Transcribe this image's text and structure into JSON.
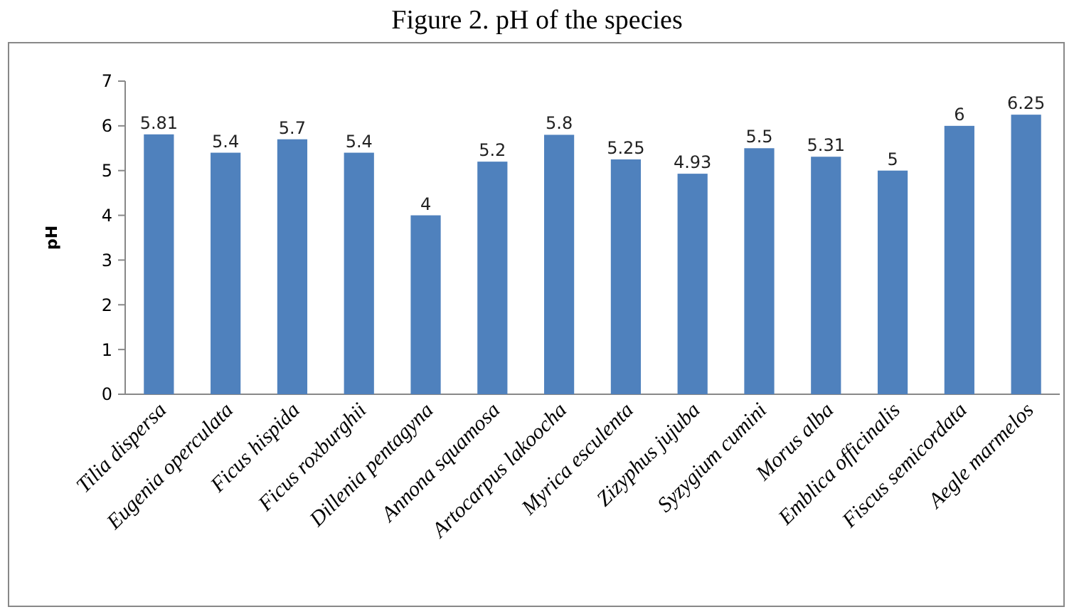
{
  "chart_data": {
    "type": "bar",
    "title": "Figure 2. pH of the species",
    "ylabel": "pH",
    "categories": [
      "Tilia dispersa",
      "Eugenia operculata",
      "Ficus hispida",
      "Ficus roxburghii",
      "Dillenia pentagyna",
      "Annona squamosa",
      "Artocarpus lakoocha",
      "Myrica esculenta",
      "Zizyphus jujuba",
      "Syzygium cumini",
      "Morus alba",
      "Emblica officinalis",
      "Fiscus semicordata",
      "Aegle marmelos"
    ],
    "values": [
      5.81,
      5.4,
      5.7,
      5.4,
      4,
      5.2,
      5.8,
      5.25,
      4.93,
      5.5,
      5.31,
      5,
      6,
      6.25
    ],
    "color": "#4f81bd",
    "ylim": [
      0,
      7
    ],
    "yticks": [
      0,
      1,
      2,
      3,
      4,
      5,
      6,
      7
    ],
    "data_labels": true
  }
}
